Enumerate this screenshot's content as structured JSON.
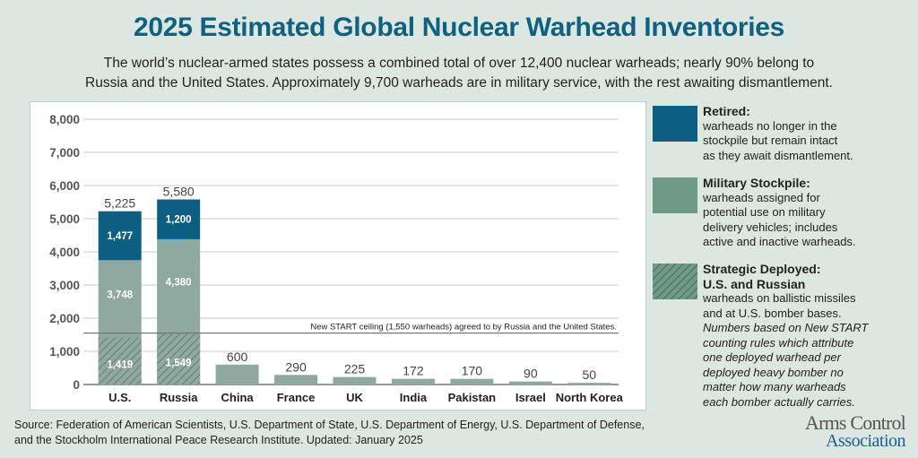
{
  "header": {
    "title": "2025 Estimated Global Nuclear Warhead Inventories",
    "subtitle_line1": "The world’s nuclear-armed states possess a combined total of over 12,400 nuclear warheads; nearly 90% belong to",
    "subtitle_line2": "Russia and the United States. Approximately 9,700 warheads are in military service, with the rest awaiting dismantlement."
  },
  "colors": {
    "retired": "#0c5f80",
    "military_stockpile": "#8fa9a0",
    "strategic_deployed_hatch": "#5a6f69",
    "title": "#0f6181",
    "background": "#dce7e1"
  },
  "chart_data": {
    "type": "bar",
    "stacked": true,
    "title": "2025 Estimated Global Nuclear Warhead Inventories",
    "xlabel": "",
    "ylabel": "",
    "ylim": [
      0,
      8000
    ],
    "yticks": [
      0,
      1000,
      2000,
      3000,
      4000,
      5000,
      6000,
      7000,
      8000
    ],
    "ytick_labels": [
      "0",
      "1,000",
      "2,000",
      "3,000",
      "4,000",
      "5,000",
      "6,000",
      "7,000",
      "8,000"
    ],
    "grid": true,
    "categories": [
      "U.S.",
      "Russia",
      "China",
      "France",
      "UK",
      "India",
      "Pakistan",
      "Israel",
      "North Korea"
    ],
    "totals": [
      5225,
      5580,
      600,
      290,
      225,
      172,
      170,
      90,
      50
    ],
    "total_labels": [
      "5,225",
      "5,580",
      "600",
      "290",
      "225",
      "172",
      "170",
      "90",
      "50"
    ],
    "series": [
      {
        "name": "Military Stockpile",
        "values": [
          3748,
          4380,
          600,
          290,
          225,
          172,
          170,
          90,
          50
        ],
        "labels": [
          "3,748",
          "4,380",
          "",
          "",
          "",
          "",
          "",
          "",
          ""
        ]
      },
      {
        "name": "Retired",
        "values": [
          1477,
          1200,
          0,
          0,
          0,
          0,
          0,
          0,
          0
        ],
        "labels": [
          "1,477",
          "1,200",
          "",
          "",
          "",
          "",
          "",
          "",
          ""
        ]
      },
      {
        "name": "Strategic Deployed (subset of Military Stockpile)",
        "values": [
          1419,
          1549,
          0,
          0,
          0,
          0,
          0,
          0,
          0
        ],
        "labels": [
          "1,419",
          "1,549",
          "",
          "",
          "",
          "",
          "",
          "",
          ""
        ]
      }
    ],
    "reference_line": {
      "value": 1550,
      "label": "New START ceiling (1,550 warheads) agreed to by Russia and the United States."
    },
    "legend_position": "right"
  },
  "legend": [
    {
      "title": "Retired:",
      "subtitle": "",
      "text": [
        "warheads no longer in the",
        "stockpile but remain intact",
        "as they await dismantlement."
      ],
      "note": []
    },
    {
      "title": "Military Stockpile:",
      "subtitle": "",
      "text": [
        "warheads assigned for",
        "potential use on military",
        "delivery vehicles; includes",
        "active and inactive warheads."
      ],
      "note": []
    },
    {
      "title": "Strategic Deployed:",
      "subtitle": "U.S. and Russian",
      "text": [
        "warheads on ballistic missiles",
        "and at U.S. bomber bases."
      ],
      "note": [
        "Numbers based on New START",
        "counting rules which attribute",
        "one deployed warhead per",
        "deployed heavy bomber no",
        "matter how many warheads",
        "each bomber actually carries."
      ]
    }
  ],
  "footer": {
    "source_line1": "Source: Federation of American Scientists, U.S. Department of State, U.S. Department of Energy, U.S. Department of Defense,",
    "source_line2": "and the Stockholm International Peace Research Institute. Updated: January 2025",
    "logo_line1": "Arms Control",
    "logo_line2": "Association"
  }
}
